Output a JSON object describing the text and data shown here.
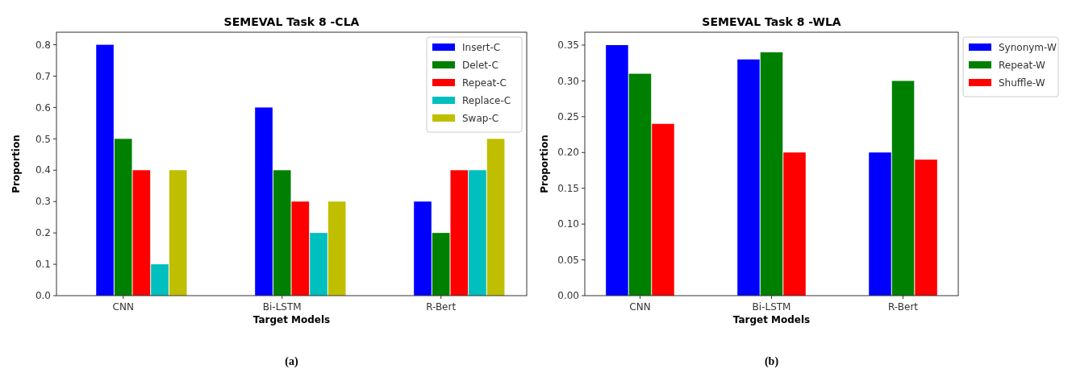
{
  "chart_data": [
    {
      "type": "bar",
      "title": "SEMEVAL Task 8 -CLA",
      "xlabel": "Target Models",
      "ylabel": "Proportion",
      "categories": [
        "CNN",
        "Bi-LSTM",
        "R-Bert"
      ],
      "series": [
        {
          "name": "Insert-C",
          "color": "#0000ff",
          "values": [
            0.8,
            0.6,
            0.3
          ]
        },
        {
          "name": "Delet-C",
          "color": "#008000",
          "values": [
            0.5,
            0.4,
            0.2
          ]
        },
        {
          "name": "Repeat-C",
          "color": "#ff0000",
          "values": [
            0.4,
            0.3,
            0.4
          ]
        },
        {
          "name": "Replace-C",
          "color": "#00bfbf",
          "values": [
            0.1,
            0.2,
            0.4
          ]
        },
        {
          "name": "Swap-C",
          "color": "#bfbf00",
          "values": [
            0.4,
            0.3,
            0.5
          ]
        }
      ],
      "ylim": [
        0,
        0.84
      ],
      "yticks": [
        {
          "value": 0,
          "label": "0.0"
        },
        0.1,
        0.2,
        0.3,
        0.4,
        0.5,
        0.6,
        0.7,
        0.8
      ],
      "legend": "top right",
      "annotations": [
        "(a)"
      ]
    },
    {
      "type": "bar",
      "title": "SEMEVAL Task 8 -WLA",
      "xlabel": "Target Models",
      "ylabel": "Proportion",
      "categories": [
        "CNN",
        "Bi-LSTM",
        "R-Bert"
      ],
      "series": [
        {
          "name": "Synonym-W",
          "color": "#0000ff",
          "values": [
            0.35,
            0.33,
            0.2
          ]
        },
        {
          "name": "Repeat-W",
          "color": "#008000",
          "values": [
            0.31,
            0.34,
            0.3
          ]
        },
        {
          "name": "Shuffle-W",
          "color": "#ff0000",
          "values": [
            0.24,
            0.2,
            0.19
          ]
        }
      ],
      "ylim": [
        0,
        0.368
      ],
      "yticks": [
        {
          "value": 0,
          "label": "0.00"
        },
        {
          "value": 0.05,
          "label": "0.05"
        },
        {
          "value": 0.1,
          "label": "0.10"
        },
        {
          "value": 0.15,
          "label": "0.15"
        },
        {
          "value": 0.2,
          "label": "0.20"
        },
        {
          "value": 0.25,
          "label": "0.25"
        },
        {
          "value": 0.3,
          "label": "0.30"
        },
        {
          "value": 0.35,
          "label": "0.35"
        }
      ],
      "legend": "right",
      "annotations": [
        "(b)"
      ]
    }
  ]
}
